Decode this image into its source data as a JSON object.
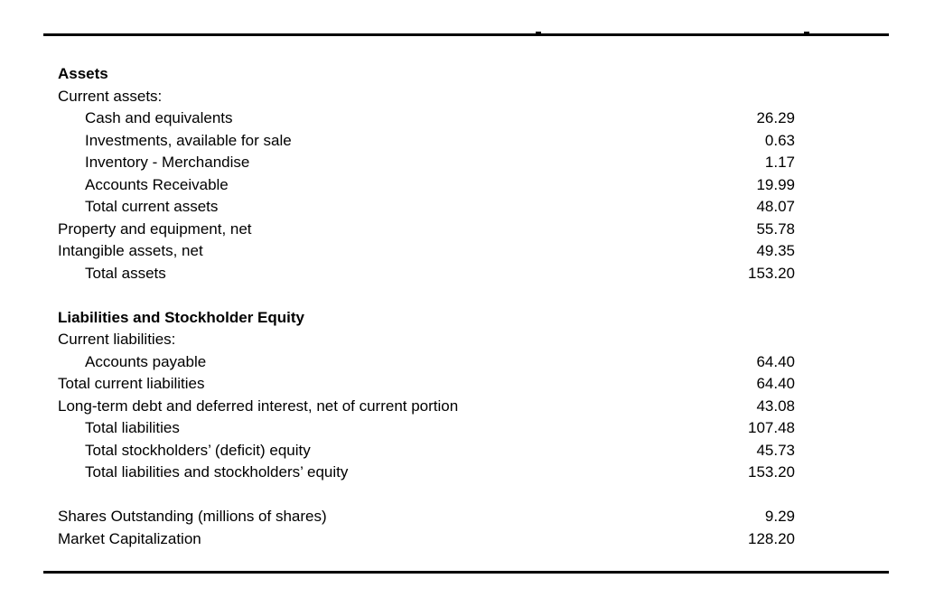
{
  "document": {
    "type": "balance-sheet",
    "colors": {
      "background": "#ffffff",
      "text": "#000000",
      "rule": "#000000"
    },
    "sections": [
      {
        "heading": "Assets",
        "rows": [
          {
            "label": "Current assets:",
            "value": "",
            "indent": 0
          },
          {
            "label": "Cash and equivalents",
            "value": "26.29",
            "indent": 1
          },
          {
            "label": "Investments, available for sale",
            "value": "0.63",
            "indent": 1
          },
          {
            "label": "Inventory - Merchandise",
            "value": "1.17",
            "indent": 1
          },
          {
            "label": "Accounts Receivable",
            "value": "19.99",
            "indent": 1
          },
          {
            "label": "Total current assets",
            "value": "48.07",
            "indent": 1
          },
          {
            "label": "Property and equipment, net",
            "value": "55.78",
            "indent": 0
          },
          {
            "label": "Intangible assets, net",
            "value": "49.35",
            "indent": 0
          },
          {
            "label": "Total assets",
            "value": "153.20",
            "indent": 1
          }
        ]
      },
      {
        "heading": "Liabilities and Stockholder Equity",
        "rows": [
          {
            "label": "Current liabilities:",
            "value": "",
            "indent": 0
          },
          {
            "label": "Accounts payable",
            "value": "64.40",
            "indent": 1
          },
          {
            "label": "Total current liabilities",
            "value": "64.40",
            "indent": 0
          },
          {
            "label": "Long-term debt and deferred interest, net of current portion",
            "value": "43.08",
            "indent": 0
          },
          {
            "label": "Total liabilities",
            "value": "107.48",
            "indent": 1
          },
          {
            "label": "Total stockholders’ (deficit) equity",
            "value": "45.73",
            "indent": 1
          },
          {
            "label": "Total liabilities and stockholders’ equity",
            "value": "153.20",
            "indent": 1
          }
        ]
      },
      {
        "heading": "",
        "rows": [
          {
            "label": "Shares Outstanding (millions of shares)",
            "value": "9.29",
            "indent": 0
          },
          {
            "label": "Market Capitalization",
            "value": "128.20",
            "indent": 0
          }
        ]
      }
    ]
  }
}
